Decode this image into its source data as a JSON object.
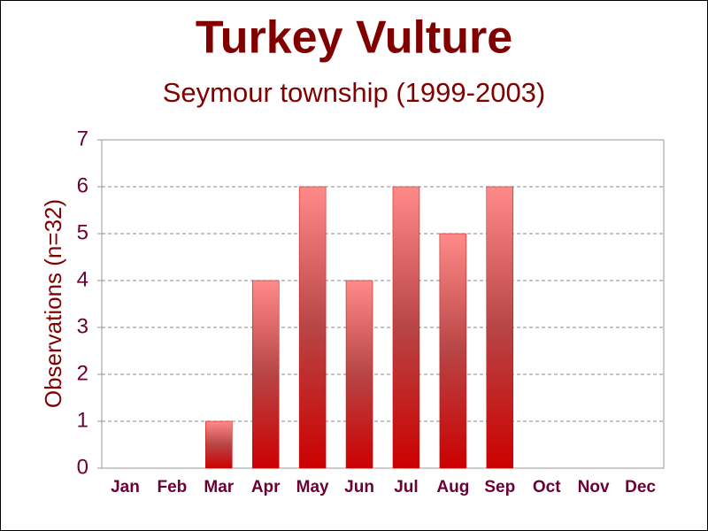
{
  "chart_data": {
    "type": "bar",
    "title": "Turkey Vulture",
    "subtitle": "Seymour township (1999-2003)",
    "y_label": "Observations (n=32)",
    "categories": [
      "Jan",
      "Feb",
      "Mar",
      "Apr",
      "May",
      "Jun",
      "Jul",
      "Aug",
      "Sep",
      "Oct",
      "Nov",
      "Dec"
    ],
    "values": [
      0,
      0,
      1,
      4,
      6,
      4,
      6,
      5,
      6,
      0,
      0,
      0
    ],
    "color": "#cc0000",
    "ylim": [
      0,
      7
    ],
    "yticks": [
      0,
      1,
      2,
      3,
      4,
      5,
      6,
      7
    ],
    "grid": true
  }
}
